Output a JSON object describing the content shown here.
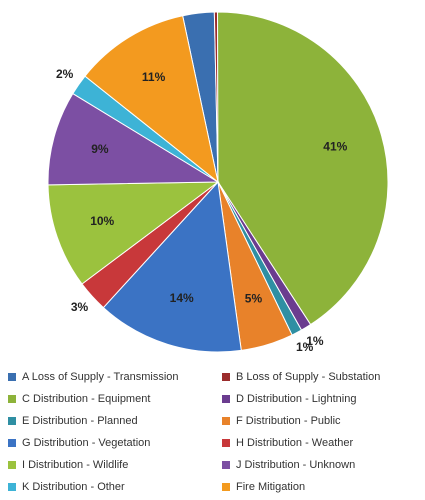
{
  "chart_data": {
    "type": "pie",
    "categories": [
      "A Loss of Supply - Transmission",
      "B Loss of Supply - Substation",
      "C Distribution - Equipment",
      "D Distribution - Lightning",
      "E Distribution - Planned",
      "F Distribution - Public",
      "G Distribution - Vegetation",
      "H Distribution - Weather",
      "I Distribution - Wildlife",
      "J Distribution - Unknown",
      "K Distribution - Other",
      "Fire Mitigation"
    ],
    "values": [
      3,
      0.3,
      41,
      1,
      1,
      5,
      14,
      3,
      10,
      9,
      2,
      11
    ],
    "value_labels": [
      "3%",
      null,
      "41%",
      "1%",
      "1%",
      "5%",
      "14%",
      "3%",
      "10%",
      "9%",
      "2%",
      "11%"
    ],
    "colors": [
      "#3a6fb0",
      "#9b2c2c",
      "#8db33a",
      "#6b3c8f",
      "#2f8fa3",
      "#e8822a",
      "#3b73c4",
      "#c8383a",
      "#9bc23e",
      "#7c4fa3",
      "#3db3d6",
      "#f39a1f"
    ],
    "legend": "bottom"
  }
}
